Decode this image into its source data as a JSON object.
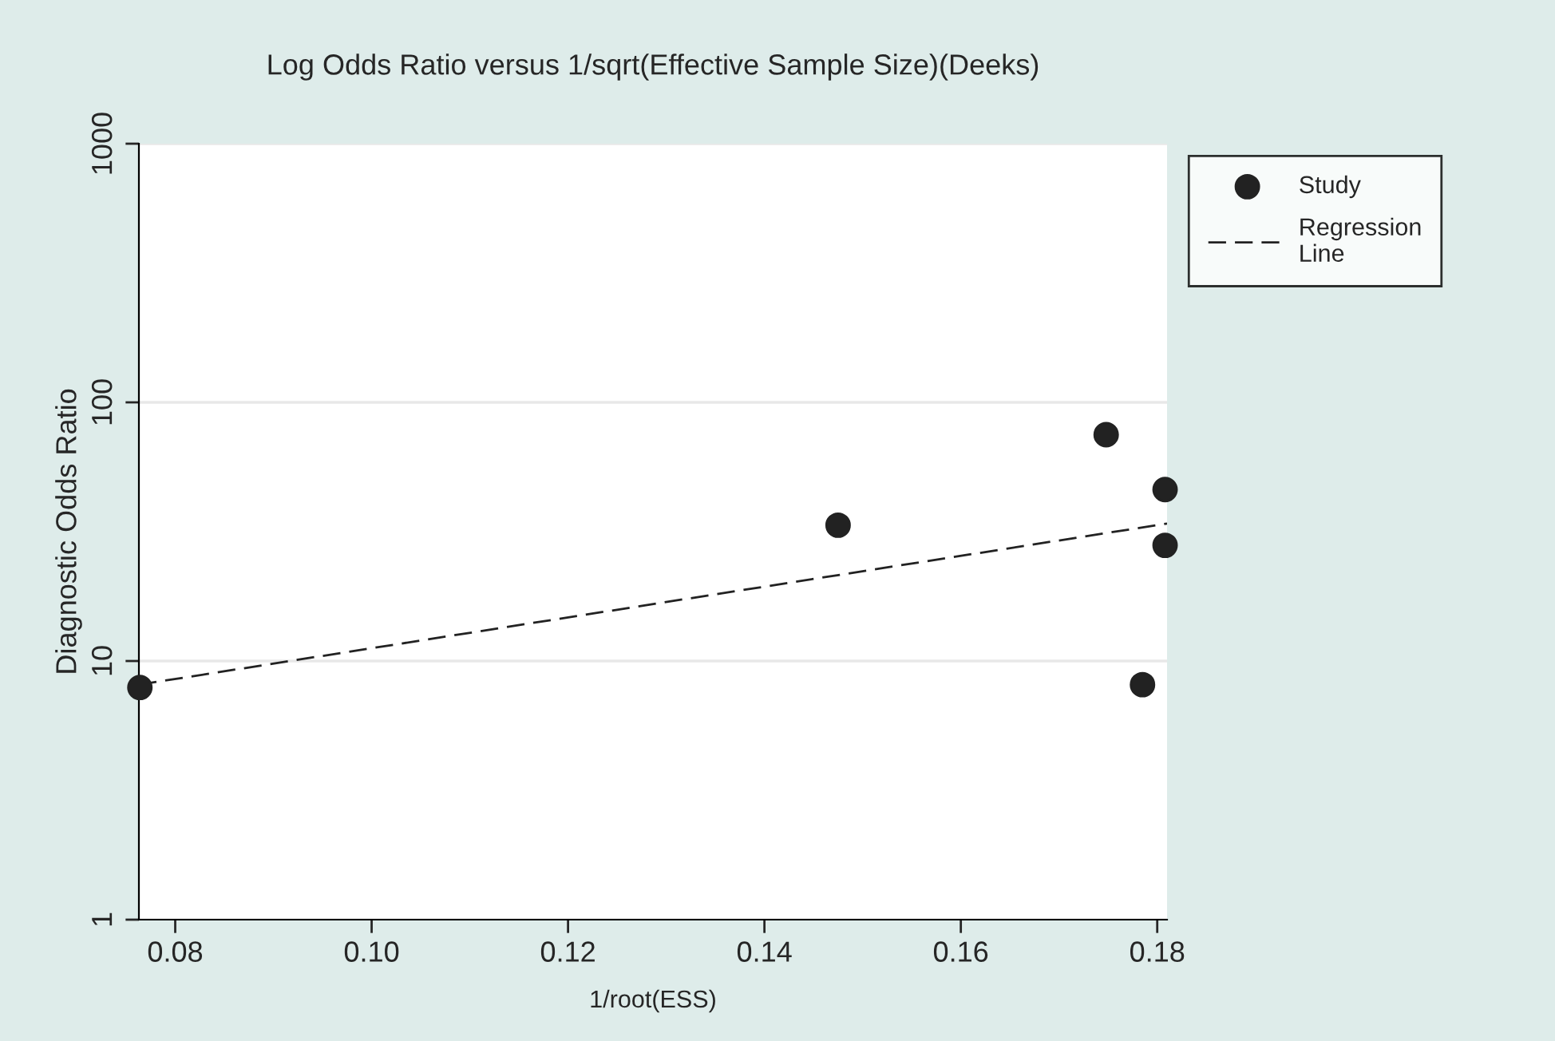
{
  "chart_data": {
    "type": "scatter",
    "title": "Log Odds Ratio versus 1/sqrt(Effective Sample Size)(Deeks)",
    "xlabel": "1/root(ESS)",
    "ylabel": "Diagnostic Odds Ratio",
    "series": [
      {
        "name": "Study",
        "color": "#222222",
        "marker": "circle",
        "x": [
          0.0764,
          0.1475,
          0.1748,
          0.1808,
          0.1808,
          0.1785
        ],
        "values": [
          7.9,
          33.5,
          75,
          46,
          28,
          8.1
        ]
      },
      {
        "name": "Regression Line",
        "type": "line",
        "color": "#222222",
        "line_style": "dashed",
        "marker": "none",
        "x": [
          0.0763,
          0.181
        ],
        "values": [
          8.1,
          34
        ]
      }
    ],
    "log": "y",
    "xlim": [
      0.0763,
      0.181
    ],
    "ylim": [
      1,
      1000
    ],
    "xticks": [
      {
        "value": 0.08,
        "label": "0.08"
      },
      {
        "value": 0.1,
        "label": "0.10"
      },
      {
        "value": 0.12,
        "label": "0.12"
      },
      {
        "value": 0.14,
        "label": "0.14"
      },
      {
        "value": 0.16,
        "label": "0.16"
      },
      {
        "value": 0.18,
        "label": "0.18"
      }
    ],
    "yticks": [
      1,
      10,
      100,
      1000
    ],
    "grid": "y",
    "legend": "top right"
  }
}
